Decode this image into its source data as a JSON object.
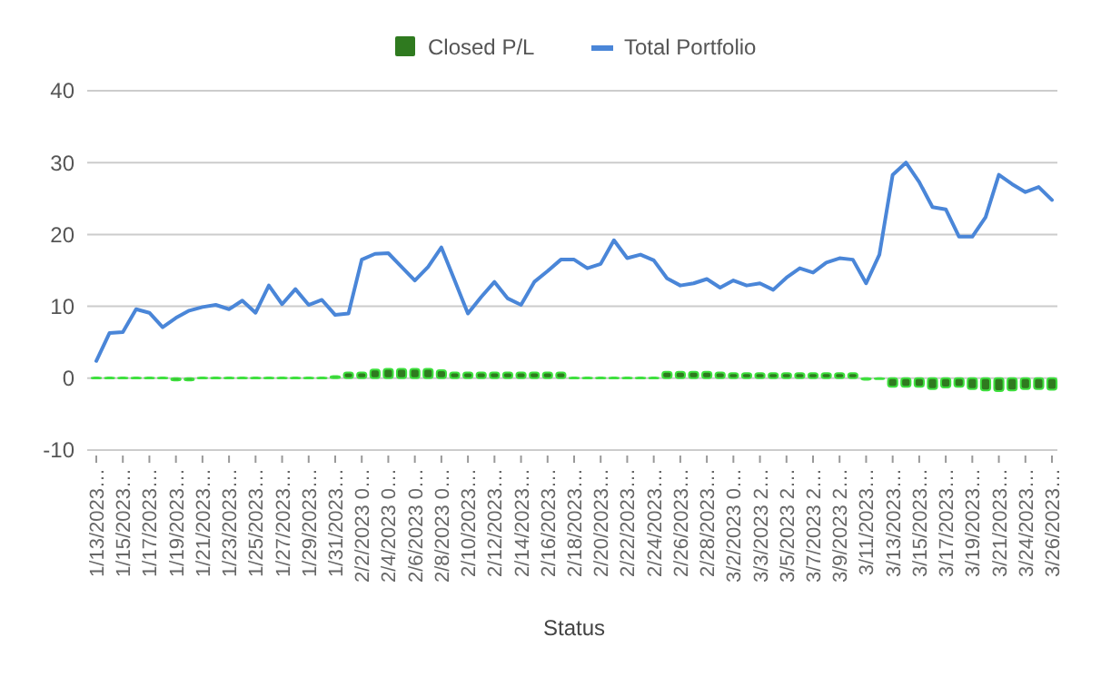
{
  "chart_data": {
    "type": "bar",
    "xlabel": "Status",
    "legend": "top",
    "grid": "y",
    "ylim": [
      -10,
      40
    ],
    "yticks": [
      -10,
      0,
      10,
      20,
      30,
      40
    ],
    "categories": [
      "1/13/2023…",
      null,
      "1/15/2023…",
      null,
      "1/17/2023…",
      null,
      "1/19/2023…",
      null,
      "1/21/2023…",
      null,
      "1/23/2023…",
      null,
      "1/25/2023…",
      null,
      "1/27/2023…",
      null,
      "1/29/2023…",
      null,
      "1/31/2023…",
      null,
      "2/2/2023 0…",
      null,
      "2/4/2023 0…",
      null,
      "2/6/2023 0…",
      null,
      "2/8/2023 0…",
      null,
      "2/10/2023…",
      null,
      "2/12/2023…",
      null,
      "2/14/2023…",
      null,
      "2/16/2023…",
      null,
      "2/18/2023…",
      null,
      "2/20/2023…",
      null,
      "2/22/2023…",
      null,
      "2/24/2023…",
      null,
      "2/26/2023…",
      null,
      "2/28/2023…",
      null,
      "3/2/2023 0…",
      null,
      "3/3/2023 2…",
      null,
      "3/5/2023 2…",
      null,
      "3/7/2023 2…",
      null,
      "3/9/2023 2…",
      null,
      "3/11/2023…",
      null,
      "3/13/2023…",
      null,
      "3/15/2023…",
      null,
      "3/17/2023…",
      null,
      "3/19/2023…",
      null,
      "3/21/2023…",
      null,
      "3/24/2023…",
      null,
      "3/26/2023…"
    ],
    "series": [
      {
        "name": "Closed P/L",
        "color": "#2f7a1f",
        "values": [
          0.1,
          0.1,
          0.1,
          0.1,
          0.1,
          0.1,
          -0.3,
          -0.3,
          0.1,
          0.1,
          0.1,
          0.1,
          0.1,
          0.1,
          0.1,
          0.1,
          0.1,
          0.1,
          0.3,
          0.8,
          0.8,
          1.2,
          1.3,
          1.3,
          1.3,
          1.3,
          1.1,
          0.8,
          0.8,
          0.8,
          0.8,
          0.8,
          0.8,
          0.8,
          0.8,
          0.8,
          0.1,
          0.1,
          0.1,
          0.1,
          0.1,
          0.1,
          0.1,
          0.9,
          0.9,
          0.9,
          0.9,
          0.8,
          0.7,
          0.7,
          0.7,
          0.7,
          0.7,
          0.7,
          0.7,
          0.7,
          0.7,
          0.7,
          -0.2,
          -0.1,
          -1.2,
          -1.2,
          -1.2,
          -1.5,
          -1.3,
          -1.2,
          -1.5,
          -1.7,
          -1.8,
          -1.7,
          -1.5,
          -1.5,
          -1.6
        ]
      },
      {
        "name": "Total Portfolio",
        "type": "line",
        "color": "#4a86d8",
        "values": [
          2.4,
          6.3,
          6.4,
          9.6,
          9.1,
          7.1,
          8.4,
          9.4,
          9.9,
          10.2,
          9.6,
          10.8,
          9.1,
          12.9,
          10.3,
          12.4,
          10.2,
          10.9,
          8.8,
          9.0,
          16.5,
          17.3,
          17.4,
          15.5,
          13.6,
          15.5,
          18.2,
          13.6,
          9.0,
          11.3,
          13.4,
          11.1,
          10.2,
          13.4,
          14.9,
          16.5,
          16.5,
          15.3,
          15.9,
          19.2,
          16.7,
          17.2,
          16.4,
          13.9,
          12.9,
          13.2,
          13.8,
          12.6,
          13.6,
          12.9,
          13.2,
          12.3,
          14.0,
          15.3,
          14.7,
          16.1,
          16.7,
          16.5,
          13.2,
          17.2,
          28.3,
          30.0,
          27.3,
          23.8,
          23.5,
          19.7,
          19.7,
          22.4,
          28.3,
          27.0,
          25.9,
          26.6,
          24.8
        ]
      }
    ]
  }
}
